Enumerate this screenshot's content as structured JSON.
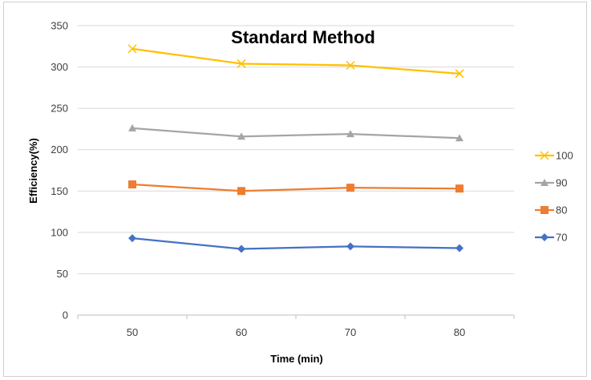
{
  "chart_data": {
    "type": "line",
    "title": "Standard Method",
    "xlabel": "Time (min)",
    "ylabel": "Efficiency(%)",
    "categories": [
      "50",
      "60",
      "70",
      "80"
    ],
    "ylim": [
      0,
      350
    ],
    "yticks": [
      0,
      50,
      100,
      150,
      200,
      250,
      300,
      350
    ],
    "grid": "horizontal",
    "legend_position": "right",
    "series": [
      {
        "name": "100",
        "values": [
          322,
          304,
          302,
          292
        ],
        "color": "#FFC000",
        "marker": "x"
      },
      {
        "name": "90",
        "values": [
          226,
          216,
          219,
          214
        ],
        "color": "#A5A5A5",
        "marker": "triangle"
      },
      {
        "name": "80",
        "values": [
          158,
          150,
          154,
          153
        ],
        "color": "#ED7D31",
        "marker": "square"
      },
      {
        "name": "70",
        "values": [
          93,
          80,
          83,
          81
        ],
        "color": "#4472C4",
        "marker": "diamond"
      }
    ]
  }
}
